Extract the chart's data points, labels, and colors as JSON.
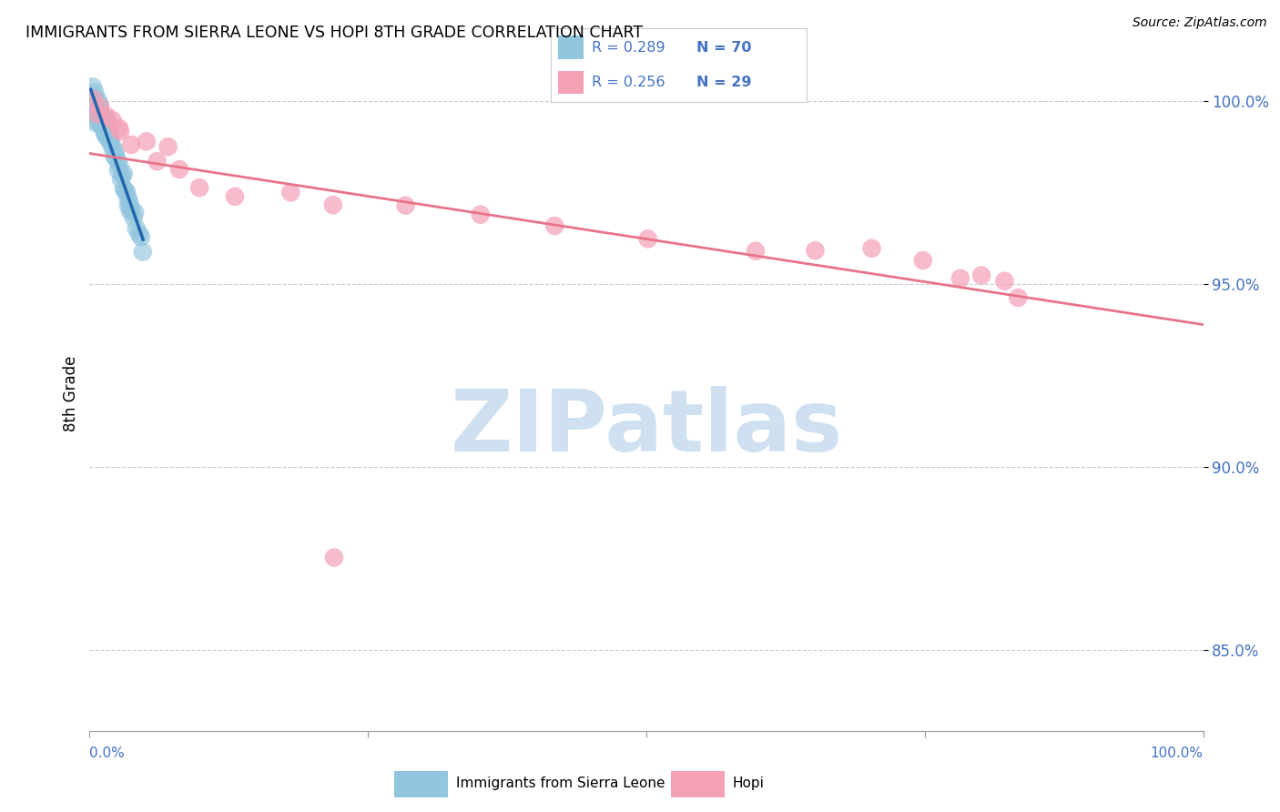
{
  "title": "IMMIGRANTS FROM SIERRA LEONE VS HOPI 8TH GRADE CORRELATION CHART",
  "source": "Source: ZipAtlas.com",
  "ylabel": "8th Grade",
  "yticks": [
    0.85,
    0.9,
    0.95,
    1.0
  ],
  "ytick_labels": [
    "85.0%",
    "90.0%",
    "95.0%",
    "100.0%"
  ],
  "xlim": [
    0.0,
    1.0
  ],
  "ylim": [
    0.828,
    1.012
  ],
  "legend_blue_label": "Immigrants from Sierra Leone",
  "legend_pink_label": "Hopi",
  "R_blue": 0.289,
  "N_blue": 70,
  "R_pink": 0.256,
  "N_pink": 29,
  "blue_color": "#92c5de",
  "blue_line_color": "#2166ac",
  "pink_color": "#f4a0b5",
  "pink_line_color": "#e8748a",
  "watermark_text": "ZIPatlas",
  "watermark_color": "#cfe0f0",
  "background_color": "#ffffff",
  "grid_color": "#cccccc",
  "blue_x": [
    0.001,
    0.002,
    0.002,
    0.003,
    0.003,
    0.003,
    0.004,
    0.004,
    0.004,
    0.005,
    0.005,
    0.005,
    0.006,
    0.006,
    0.006,
    0.007,
    0.007,
    0.007,
    0.008,
    0.008,
    0.008,
    0.009,
    0.009,
    0.009,
    0.01,
    0.01,
    0.01,
    0.011,
    0.011,
    0.012,
    0.012,
    0.013,
    0.013,
    0.014,
    0.014,
    0.015,
    0.015,
    0.016,
    0.016,
    0.017,
    0.017,
    0.018,
    0.018,
    0.019,
    0.019,
    0.02,
    0.021,
    0.022,
    0.023,
    0.024,
    0.025,
    0.026,
    0.027,
    0.028,
    0.029,
    0.03,
    0.031,
    0.032,
    0.033,
    0.034,
    0.035,
    0.036,
    0.037,
    0.038,
    0.039,
    0.04,
    0.042,
    0.044,
    0.046,
    0.048
  ],
  "blue_y": [
    0.996,
    0.999,
    1.001,
    0.997,
    1.0,
    1.003,
    0.998,
    1.001,
    0.999,
    0.996,
    0.999,
    1.002,
    0.997,
    0.999,
    1.001,
    0.996,
    0.998,
    1.0,
    0.995,
    0.997,
    0.999,
    0.994,
    0.997,
    0.999,
    0.994,
    0.996,
    0.998,
    0.993,
    0.996,
    0.993,
    0.995,
    0.992,
    0.994,
    0.992,
    0.994,
    0.991,
    0.993,
    0.99,
    0.992,
    0.99,
    0.992,
    0.989,
    0.991,
    0.988,
    0.99,
    0.988,
    0.987,
    0.986,
    0.985,
    0.984,
    0.983,
    0.982,
    0.981,
    0.98,
    0.979,
    0.978,
    0.977,
    0.976,
    0.975,
    0.974,
    0.973,
    0.972,
    0.971,
    0.97,
    0.969,
    0.968,
    0.966,
    0.964,
    0.962,
    0.96
  ],
  "pink_x": [
    0.003,
    0.007,
    0.01,
    0.015,
    0.02,
    0.025,
    0.03,
    0.04,
    0.05,
    0.06,
    0.07,
    0.08,
    0.1,
    0.13,
    0.18,
    0.22,
    0.28,
    0.35,
    0.42,
    0.5,
    0.6,
    0.65,
    0.7,
    0.75,
    0.78,
    0.8,
    0.82,
    0.83,
    0.22
  ],
  "pink_y": [
    1.002,
    1.0,
    0.998,
    0.996,
    0.994,
    0.992,
    0.99,
    0.988,
    0.986,
    0.984,
    0.982,
    0.98,
    0.978,
    0.976,
    0.974,
    0.972,
    0.97,
    0.968,
    0.966,
    0.964,
    0.962,
    0.96,
    0.958,
    0.956,
    0.954,
    0.952,
    0.95,
    0.948,
    0.875
  ]
}
